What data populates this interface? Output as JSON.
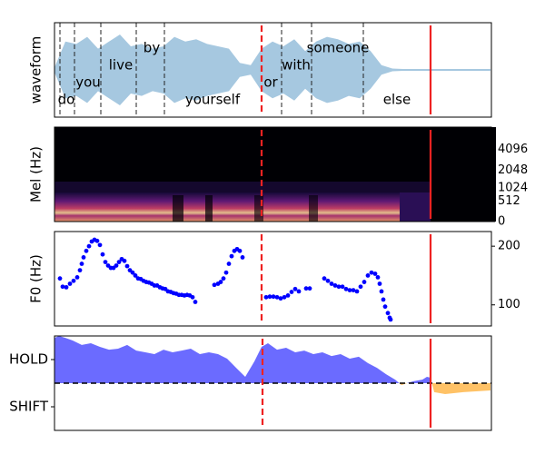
{
  "chart_data": [
    {
      "type": "waveform",
      "ylabel": "waveform",
      "xlim": [
        0,
        481
      ],
      "ylim": [
        -1,
        1
      ],
      "color": "#a6c8e0",
      "x": [
        0,
        12,
        24,
        36,
        48,
        60,
        72,
        84,
        96,
        108,
        120,
        132,
        144,
        156,
        168,
        180,
        192,
        204,
        216,
        228,
        240,
        252,
        264,
        276,
        288,
        300,
        312,
        324,
        336,
        348,
        360,
        372,
        384,
        396,
        408,
        420,
        432,
        444,
        456,
        468,
        480
      ],
      "values": [
        0.05,
        0.6,
        0.55,
        0.7,
        0.45,
        0.6,
        0.75,
        0.5,
        0.55,
        0.45,
        0.5,
        0.7,
        0.6,
        0.65,
        0.55,
        0.5,
        0.45,
        0.15,
        0.1,
        0.45,
        0.6,
        0.5,
        0.65,
        0.4,
        0.6,
        0.7,
        0.65,
        0.55,
        0.6,
        0.4,
        0.1,
        0.03,
        0.02,
        0.02,
        0.02,
        0.02,
        0.02,
        0.02,
        0.02,
        0.02,
        0.02
      ],
      "words": {
        "labels": [
          "do",
          "you",
          "live",
          "by",
          "yourself",
          "or",
          "with",
          "someone",
          "else"
        ],
        "x": [
          13,
          37,
          73,
          107,
          174,
          238,
          266,
          312,
          377
        ]
      },
      "boundaries": [
        6,
        22,
        51,
        90,
        121,
        250,
        283,
        340
      ],
      "markers": [
        {
          "x": 228,
          "style": "dashed",
          "color": "#ee2222"
        },
        {
          "x": 414,
          "style": "solid",
          "color": "#ee2222"
        }
      ]
    },
    {
      "type": "heatmap",
      "ylabel": "Mel (Hz)",
      "xlim": [
        0,
        481
      ],
      "yscale": "mel",
      "ylim": [
        0,
        8000
      ],
      "yticks": [
        0,
        512,
        1024,
        2048,
        4096
      ],
      "yaxis": "right",
      "markers": [
        {
          "x": 228,
          "style": "dashed",
          "color": "#ee2222"
        },
        {
          "x": 414,
          "style": "solid",
          "color": "#ee2222"
        }
      ]
    },
    {
      "type": "scatter",
      "ylabel": "F0 (Hz)",
      "xlim": [
        0,
        481
      ],
      "ylim": [
        64,
        225
      ],
      "yticks": [
        100,
        200
      ],
      "yaxis": "right",
      "color": "#0000ff",
      "x": [
        6,
        9,
        13,
        17,
        21,
        25,
        28,
        30,
        32,
        35,
        38,
        41,
        44,
        47,
        50,
        53,
        56,
        59,
        62,
        65,
        68,
        71,
        74,
        77,
        80,
        83,
        86,
        89,
        92,
        95,
        98,
        101,
        104,
        107,
        110,
        113,
        116,
        119,
        122,
        125,
        128,
        131,
        134,
        137,
        140,
        143,
        146,
        149,
        152,
        155,
        176,
        180,
        183,
        186,
        189,
        192,
        195,
        198,
        201,
        204,
        207,
        233,
        237,
        241,
        245,
        249,
        253,
        257,
        261,
        265,
        269,
        277,
        281,
        297,
        301,
        305,
        309,
        313,
        317,
        321,
        325,
        329,
        333,
        337,
        341,
        345,
        349,
        353,
        356,
        358,
        360,
        362,
        364,
        367,
        369,
        370
      ],
      "values": [
        145,
        131,
        130,
        136,
        141,
        147,
        159,
        170,
        181,
        192,
        200,
        208,
        211,
        209,
        202,
        186,
        173,
        167,
        163,
        163,
        167,
        173,
        178,
        175,
        166,
        159,
        155,
        150,
        145,
        144,
        141,
        139,
        138,
        136,
        133,
        133,
        130,
        128,
        127,
        123,
        122,
        120,
        119,
        117,
        117,
        116,
        117,
        116,
        113,
        105,
        134,
        136,
        139,
        145,
        155,
        170,
        183,
        192,
        195,
        192,
        181,
        113,
        114,
        114,
        113,
        111,
        113,
        116,
        122,
        127,
        123,
        128,
        128,
        145,
        141,
        136,
        133,
        131,
        131,
        127,
        125,
        125,
        123,
        131,
        139,
        150,
        155,
        153,
        147,
        136,
        123,
        109,
        97,
        86,
        78,
        75
      ],
      "markers": [
        {
          "x": 228,
          "style": "dashed",
          "color": "#ee2222"
        },
        {
          "x": 414,
          "style": "solid",
          "color": "#ee2222"
        }
      ]
    },
    {
      "type": "area",
      "xlim": [
        0,
        481
      ],
      "ylim": [
        -2,
        2
      ],
      "yticks": [
        {
          "value": 1,
          "label": "HOLD"
        },
        {
          "value": -1,
          "label": "SHIFT"
        }
      ],
      "yaxis": "left",
      "colors": {
        "positive": "#6b6bff",
        "negative": "#ffc266"
      },
      "hline": 0,
      "x": [
        0,
        5,
        12,
        20,
        30,
        40,
        50,
        60,
        70,
        80,
        90,
        100,
        110,
        120,
        130,
        140,
        150,
        160,
        170,
        180,
        190,
        200,
        210,
        220,
        228,
        235,
        245,
        255,
        265,
        275,
        285,
        295,
        305,
        315,
        325,
        335,
        345,
        355,
        365,
        375,
        382,
        388,
        395,
        405,
        410,
        414,
        418,
        430,
        450,
        480
      ],
      "values": [
        1.92,
        2.0,
        1.92,
        1.81,
        1.62,
        1.69,
        1.54,
        1.42,
        1.46,
        1.62,
        1.38,
        1.31,
        1.23,
        1.42,
        1.31,
        1.38,
        1.46,
        1.23,
        1.31,
        1.23,
        1.04,
        0.65,
        0.27,
        0.92,
        1.54,
        1.69,
        1.42,
        1.5,
        1.31,
        1.38,
        1.23,
        1.31,
        1.15,
        1.23,
        1.04,
        1.12,
        0.85,
        0.65,
        0.38,
        0.15,
        -0.08,
        0,
        0.08,
        0.15,
        0.27,
        0.23,
        -0.38,
        -0.46,
        -0.38,
        -0.31
      ],
      "markers": [
        {
          "x": 229,
          "style": "dashed",
          "color": "#ee2222"
        },
        {
          "x": 414,
          "style": "solid",
          "color": "#ee2222"
        }
      ]
    }
  ]
}
